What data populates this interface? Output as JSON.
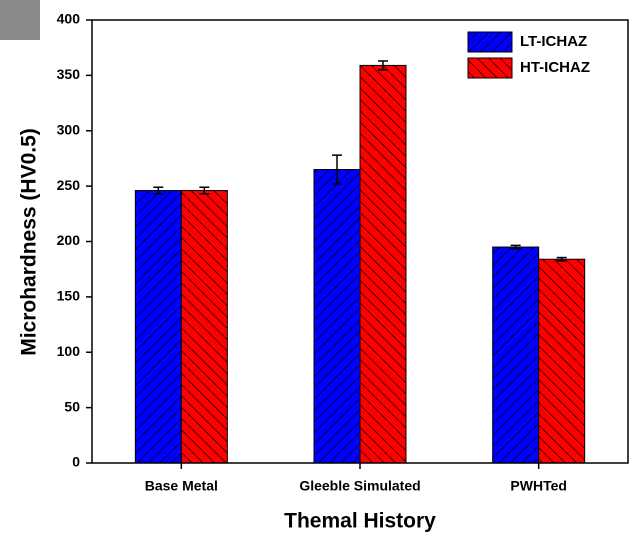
{
  "chart_data": {
    "type": "bar",
    "xlabel": "Themal History",
    "ylabel": "Microhardness (HV0.5)",
    "categories": [
      "Base Metal",
      "Gleeble Simulated",
      "PWHTed"
    ],
    "series": [
      {
        "name": "LT-ICHAZ",
        "color": "#0000ff",
        "hatch": "/",
        "values": [
          246,
          265,
          195
        ],
        "errors": [
          3,
          13,
          1.5
        ]
      },
      {
        "name": "HT-ICHAZ",
        "color": "#ff0000",
        "hatch": "\\",
        "values": [
          246,
          359,
          184
        ],
        "errors": [
          3,
          4,
          1.5
        ]
      }
    ],
    "ylim": [
      0,
      400
    ],
    "yticks": [
      0,
      50,
      100,
      150,
      200,
      250,
      300,
      350,
      400
    ],
    "grid": false,
    "legend": "upper right"
  }
}
